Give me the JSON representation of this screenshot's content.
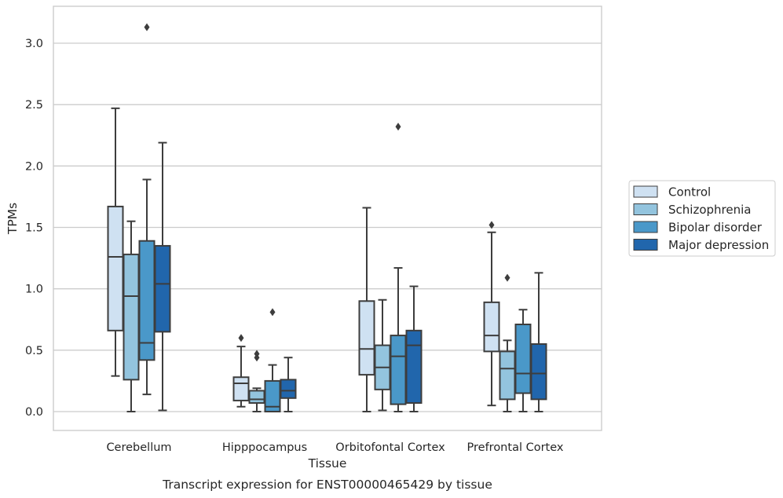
{
  "chart_data": {
    "type": "box",
    "title": "",
    "caption": "Transcript expression for ENST00000465429 by tissue",
    "xlabel": "Tissue",
    "ylabel": "TPMs",
    "ylim": [
      -0.15,
      3.3
    ],
    "yticks": [
      "0.0",
      "0.5",
      "1.0",
      "1.5",
      "2.0",
      "2.5",
      "3.0"
    ],
    "grid": true,
    "legend_position": "right",
    "categories": [
      "Cerebellum",
      "Hipppocampus",
      "Orbitofontal Cortex",
      "Prefrontal Cortex"
    ],
    "series": [
      {
        "name": "Control",
        "color": "#cfe1f2",
        "boxes": [
          {
            "whislo": 0.29,
            "q1": 0.66,
            "med": 1.26,
            "q3": 1.67,
            "whishi": 2.47,
            "fliers": []
          },
          {
            "whislo": 0.04,
            "q1": 0.09,
            "med": 0.23,
            "q3": 0.28,
            "whishi": 0.53,
            "fliers": [
              0.6
            ]
          },
          {
            "whislo": 0.0,
            "q1": 0.3,
            "med": 0.51,
            "q3": 0.9,
            "whishi": 1.66,
            "fliers": []
          },
          {
            "whislo": 0.05,
            "q1": 0.49,
            "med": 0.62,
            "q3": 0.89,
            "whishi": 1.46,
            "fliers": [
              1.52
            ]
          }
        ]
      },
      {
        "name": "Schizophrenia",
        "color": "#93c4de",
        "boxes": [
          {
            "whislo": 0.0,
            "q1": 0.26,
            "med": 0.94,
            "q3": 1.28,
            "whishi": 1.55,
            "fliers": []
          },
          {
            "whislo": 0.0,
            "q1": 0.07,
            "med": 0.1,
            "q3": 0.17,
            "whishi": 0.19,
            "fliers": [
              0.44,
              0.47
            ]
          },
          {
            "whislo": 0.01,
            "q1": 0.18,
            "med": 0.36,
            "q3": 0.54,
            "whishi": 0.91,
            "fliers": []
          },
          {
            "whislo": 0.0,
            "q1": 0.1,
            "med": 0.35,
            "q3": 0.49,
            "whishi": 0.58,
            "fliers": [
              1.09
            ]
          }
        ]
      },
      {
        "name": "Bipolar disorder",
        "color": "#4a98c9",
        "boxes": [
          {
            "whislo": 0.14,
            "q1": 0.42,
            "med": 0.56,
            "q3": 1.39,
            "whishi": 1.89,
            "fliers": [
              3.13
            ]
          },
          {
            "whislo": 0.0,
            "q1": 0.0,
            "med": 0.04,
            "q3": 0.25,
            "whishi": 0.38,
            "fliers": [
              0.81
            ]
          },
          {
            "whislo": 0.0,
            "q1": 0.06,
            "med": 0.45,
            "q3": 0.62,
            "whishi": 1.17,
            "fliers": [
              2.32
            ]
          },
          {
            "whislo": 0.0,
            "q1": 0.15,
            "med": 0.31,
            "q3": 0.71,
            "whishi": 0.83,
            "fliers": []
          }
        ]
      },
      {
        "name": "Major depression",
        "color": "#2166ac",
        "boxes": [
          {
            "whislo": 0.01,
            "q1": 0.65,
            "med": 1.04,
            "q3": 1.35,
            "whishi": 2.19,
            "fliers": []
          },
          {
            "whislo": 0.0,
            "q1": 0.11,
            "med": 0.17,
            "q3": 0.26,
            "whishi": 0.44,
            "fliers": []
          },
          {
            "whislo": 0.0,
            "q1": 0.07,
            "med": 0.54,
            "q3": 0.66,
            "whishi": 1.02,
            "fliers": []
          },
          {
            "whislo": 0.0,
            "q1": 0.1,
            "med": 0.31,
            "q3": 0.55,
            "whishi": 1.13,
            "fliers": []
          }
        ]
      }
    ]
  }
}
